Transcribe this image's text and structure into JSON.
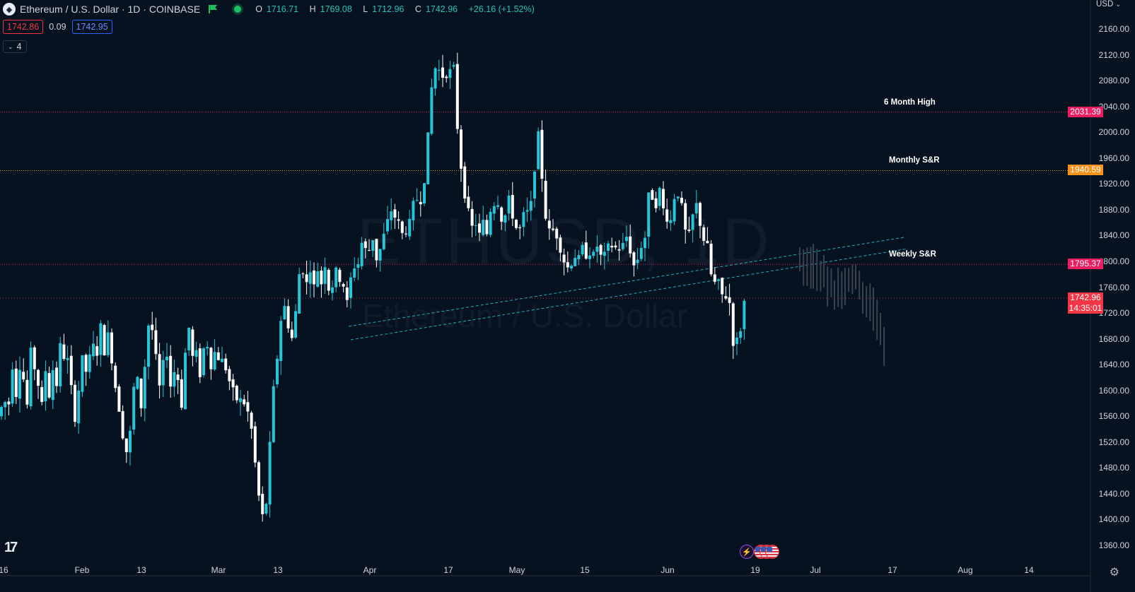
{
  "header": {
    "symbol_icon": "ethereum-logo-icon",
    "title": "Ethereum / U.S. Dollar · 1D · COINBASE",
    "ohlc": {
      "o_key": "O",
      "o": "1716.71",
      "h_key": "H",
      "h": "1769.08",
      "l_key": "L",
      "l": "1712.96",
      "c_key": "C",
      "c": "1742.96",
      "change": "+26.16 (+1.52%)"
    },
    "bid": "1742.86",
    "spread": "0.09",
    "ask": "1742.95",
    "indicator_count": "4"
  },
  "watermark": {
    "symbol": "ETHUSD, 1D",
    "name": "Ethereum / U.S. Dollar"
  },
  "price_axis": {
    "currency": "USD",
    "labels": [
      "2160.00",
      "2120.00",
      "2080.00",
      "2040.00",
      "2000.00",
      "1960.00",
      "1920.00",
      "1880.00",
      "1840.00",
      "1800.00",
      "1760.00",
      "1720.00",
      "1680.00",
      "1640.00",
      "1600.00",
      "1560.00",
      "1520.00",
      "1480.00",
      "1440.00",
      "1400.00",
      "1360.00"
    ]
  },
  "time_axis": {
    "labels": [
      "16",
      "Feb",
      "13",
      "Mar",
      "13",
      "Apr",
      "17",
      "May",
      "15",
      "Jun",
      "19",
      "Jul",
      "17",
      "Aug",
      "14"
    ]
  },
  "levels": [
    {
      "name": "6 Month High",
      "price": 2031.39,
      "tag": "2031.39",
      "color": "#e91e63"
    },
    {
      "name": "Monthly S&R",
      "price": 1940.59,
      "tag": "1940.59",
      "color": "#f7931a"
    },
    {
      "name": "Weekly S&R",
      "price": 1795.37,
      "tag": "1795.37",
      "color": "#e91e63"
    }
  ],
  "current_price": {
    "tag": "1742.96",
    "countdown": "14:35:01",
    "color": "#f23645"
  },
  "colors": {
    "up": "#26c6da",
    "down": "#ffffff",
    "background": "#06121f",
    "projection": "#3a4250"
  },
  "icons": {
    "logo": "tradingview-logo-icon",
    "events": "lightning-event-icon",
    "flags": "us-flag-icon",
    "settings": "gear-icon"
  }
}
